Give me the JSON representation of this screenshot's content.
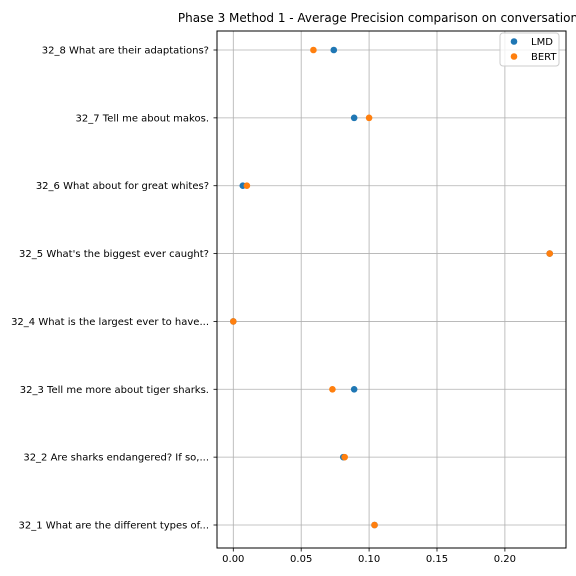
{
  "chart_data": {
    "type": "scatter",
    "title": "Phase 3 Method 1 - Average Precision comparison on conversation",
    "xlabel": "",
    "ylabel": "",
    "categories": [
      "32_1 What are the different types of...",
      "32_2 Are sharks endangered? If so,...",
      "32_3 Tell me more about tiger sharks.",
      "32_4 What is the largest ever to have...",
      "32_5 What's the biggest ever caught?",
      "32_6 What about for great whites?",
      "32_7 Tell me about makos.",
      "32_8 What are their adaptations?"
    ],
    "series": [
      {
        "name": "LMD",
        "color": "#1f77b4",
        "values": [
          0.104,
          0.081,
          0.089,
          0.0,
          0.233,
          0.007,
          0.089,
          0.074
        ]
      },
      {
        "name": "BERT",
        "color": "#ff7f0e",
        "values": [
          0.104,
          0.082,
          0.073,
          0.0,
          0.233,
          0.01,
          0.1,
          0.059
        ]
      }
    ],
    "xlim": [
      -0.012,
      0.245
    ],
    "xticks": [
      0.0,
      0.05,
      0.1,
      0.15,
      0.2
    ],
    "xtick_labels": [
      "0.00",
      "0.05",
      "0.10",
      "0.15",
      "0.20"
    ],
    "grid": true,
    "legend_position": "top-right"
  }
}
